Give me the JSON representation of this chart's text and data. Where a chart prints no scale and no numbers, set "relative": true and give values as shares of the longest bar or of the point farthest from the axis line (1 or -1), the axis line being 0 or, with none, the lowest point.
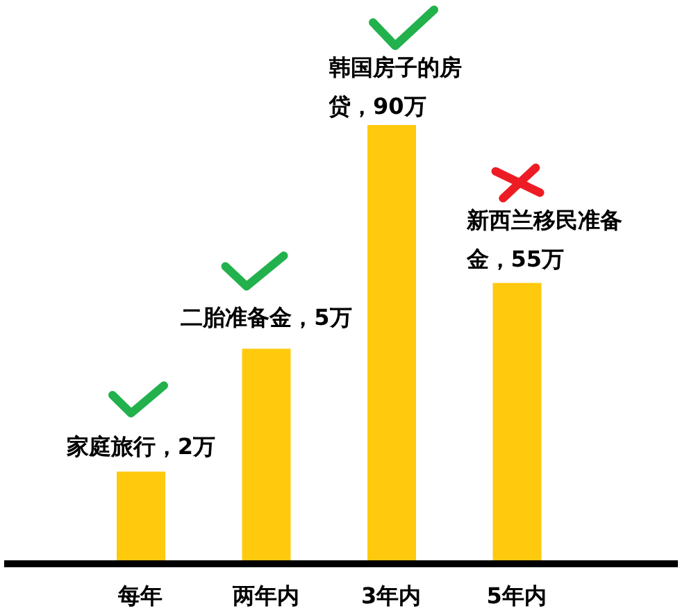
{
  "chart_data": {
    "type": "bar",
    "categories": [
      "每年",
      "两年内",
      "3年内",
      "5年内"
    ],
    "values": [
      0.21,
      0.49,
      1,
      0.64
    ],
    "color": "#ffc90e",
    "relative": true,
    "annotations": [
      {
        "text": "家庭旅行，2万",
        "x": "每年",
        "y": 0.21
      },
      {
        "text": "二胎准备金，5万",
        "x": "两年内",
        "y": 0.49
      },
      {
        "text": "韩国房子的房贷，90万",
        "x": "3年内",
        "y": 1
      },
      {
        "text": "新西兰移民准备金，55万",
        "x": "5年内",
        "y": 0.64
      }
    ]
  }
}
